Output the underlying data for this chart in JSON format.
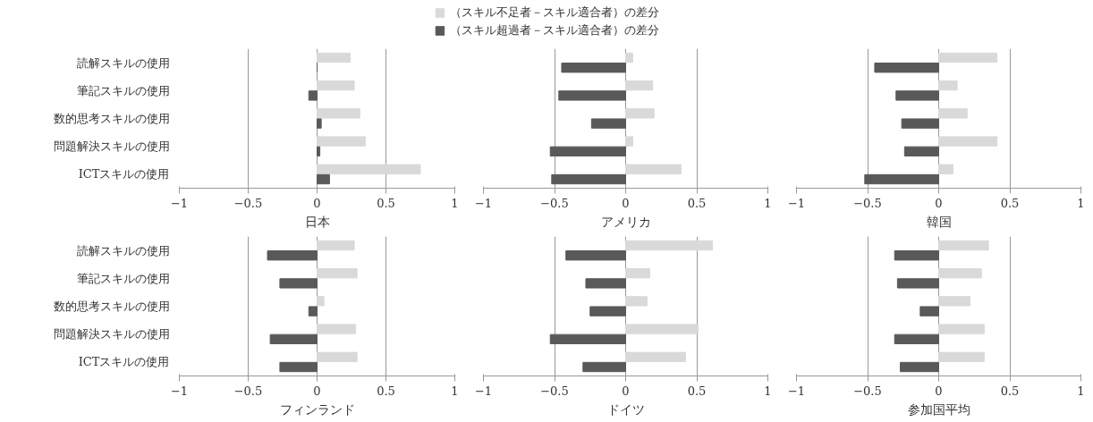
{
  "chart_data": [
    {
      "type": "bar",
      "orientation": "horizontal",
      "xlabel": "日本",
      "categories": [
        "読解スキルの使用",
        "筆記スキルの使用",
        "数的思考スキルの使用",
        "問題解決スキルの使用",
        "ICTスキルの使用"
      ],
      "xlim": [
        -1,
        1
      ],
      "xticks": [
        -1,
        -0.5,
        0,
        0.5,
        1
      ],
      "grid": "x",
      "legend": "top",
      "series": [
        {
          "name": "（スキル不足者－スキル適合者）の差分",
          "color": "#d9d9d9",
          "values": [
            0.24,
            0.27,
            0.31,
            0.35,
            0.75
          ]
        },
        {
          "name": "（スキル超過者－スキル適合者）の差分",
          "color": "#595959",
          "values": [
            0,
            -0.06,
            0.03,
            0.02,
            0.09
          ]
        }
      ]
    },
    {
      "type": "bar",
      "orientation": "horizontal",
      "xlabel": "アメリカ",
      "categories": [
        null,
        null,
        null,
        null,
        null
      ],
      "xlim": [
        -1,
        1
      ],
      "xticks": [
        -1,
        -0.5,
        0,
        0.5,
        1
      ],
      "grid": "x",
      "tick_labels": "x",
      "series": [
        {
          "color": "#d9d9d9",
          "values": [
            0.05,
            0.19,
            0.2,
            0.05,
            0.39
          ]
        },
        {
          "color": "#595959",
          "values": [
            -0.45,
            -0.47,
            -0.24,
            -0.53,
            -0.52
          ]
        }
      ]
    },
    {
      "type": "bar",
      "orientation": "horizontal",
      "xlabel": "韓国",
      "categories": [
        null,
        null,
        null,
        null,
        null
      ],
      "xlim": [
        -1,
        1
      ],
      "xticks": [
        -1,
        -0.5,
        0,
        0.5,
        1
      ],
      "grid": "x",
      "tick_labels": "x",
      "series": [
        {
          "color": "#d9d9d9",
          "values": [
            0.41,
            0.13,
            0.2,
            0.41,
            0.1
          ]
        },
        {
          "color": "#595959",
          "values": [
            -0.45,
            -0.3,
            -0.26,
            -0.24,
            -0.52
          ]
        }
      ]
    },
    {
      "type": "bar",
      "orientation": "horizontal",
      "xlabel": "フィンランド",
      "categories": [
        "読解スキルの使用",
        "筆記スキルの使用",
        "数的思考スキルの使用",
        "問題解決スキルの使用",
        "ICTスキルの使用"
      ],
      "xlim": [
        -1,
        1
      ],
      "xticks": [
        -1,
        -0.5,
        0,
        0.5,
        1
      ],
      "grid": "x",
      "series": [
        {
          "color": "#d9d9d9",
          "values": [
            0.27,
            0.29,
            0.05,
            0.28,
            0.29
          ]
        },
        {
          "color": "#595959",
          "values": [
            -0.36,
            -0.27,
            -0.06,
            -0.34,
            -0.27
          ]
        }
      ]
    },
    {
      "type": "bar",
      "orientation": "horizontal",
      "xlabel": "ドイツ",
      "categories": [
        null,
        null,
        null,
        null,
        null
      ],
      "xlim": [
        -1,
        1
      ],
      "xticks": [
        -1,
        -0.5,
        0,
        0.5,
        1
      ],
      "grid": "x",
      "tick_labels": "x",
      "series": [
        {
          "color": "#d9d9d9",
          "values": [
            0.61,
            0.17,
            0.15,
            0.51,
            0.42
          ]
        },
        {
          "color": "#595959",
          "values": [
            -0.42,
            -0.28,
            -0.25,
            -0.53,
            -0.3
          ]
        }
      ]
    },
    {
      "type": "bar",
      "orientation": "horizontal",
      "xlabel": "参加国平均",
      "categories": [
        null,
        null,
        null,
        null,
        null
      ],
      "xlim": [
        -1,
        1
      ],
      "xticks": [
        -1,
        -0.5,
        0,
        0.5,
        1
      ],
      "grid": "x",
      "tick_labels": "x",
      "series": [
        {
          "color": "#d9d9d9",
          "values": [
            0.35,
            0.3,
            0.22,
            0.32,
            0.32
          ]
        },
        {
          "color": "#595959",
          "values": [
            -0.31,
            -0.29,
            -0.13,
            -0.31,
            -0.27
          ]
        }
      ]
    }
  ]
}
